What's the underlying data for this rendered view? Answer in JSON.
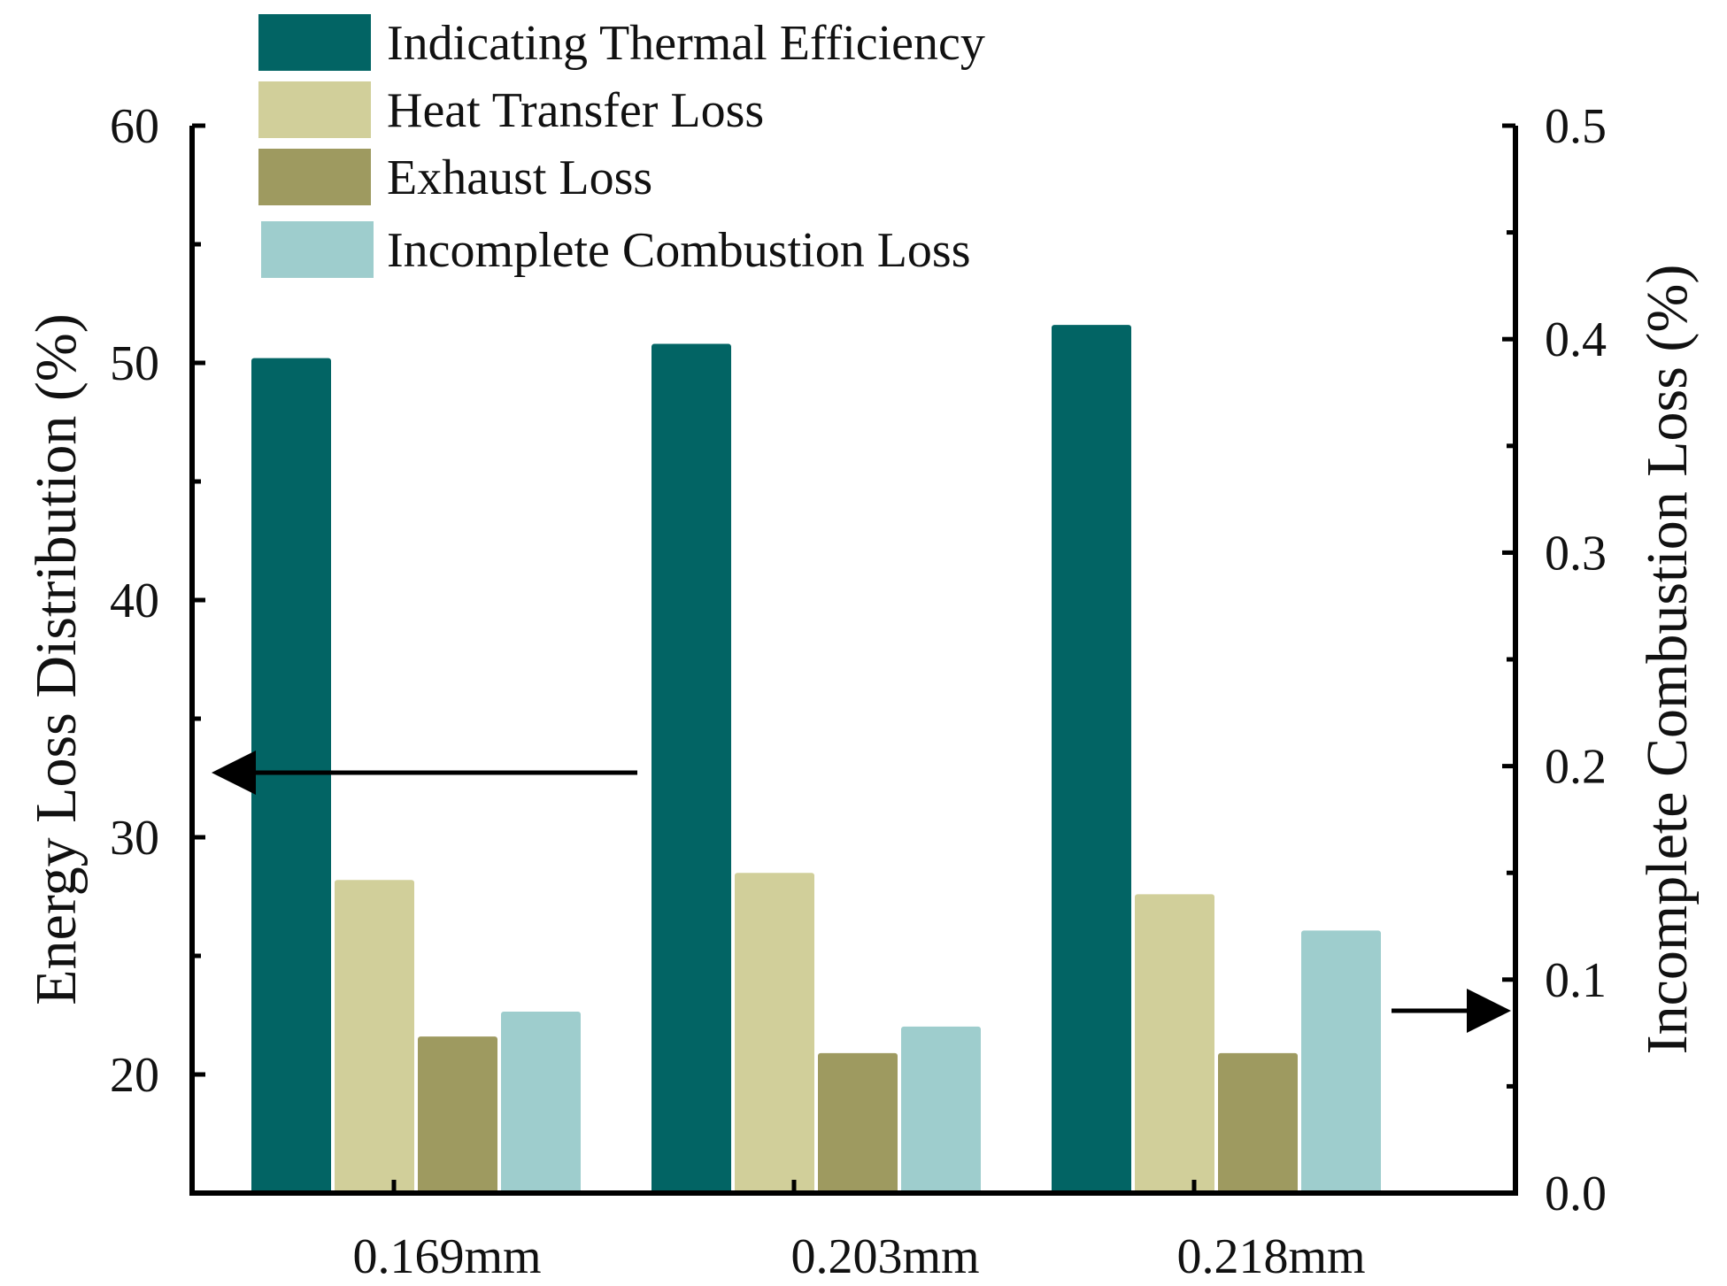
{
  "chart_data": {
    "type": "bar",
    "categories": [
      "0.169mm",
      "0.203mm",
      "0.218mm"
    ],
    "series": [
      {
        "name": "Indicating Thermal Efficiency",
        "axis": "left",
        "color": "#026464",
        "values": [
          50.2,
          50.8,
          51.6
        ]
      },
      {
        "name": "Heat Transfer Loss",
        "axis": "left",
        "color": "#d1cf9a",
        "values": [
          28.2,
          28.5,
          27.6
        ]
      },
      {
        "name": "Exhaust Loss",
        "axis": "left",
        "color": "#9e9a60",
        "values": [
          21.6,
          20.9,
          20.9
        ]
      },
      {
        "name": "Incomplete Combustion Loss",
        "axis": "right",
        "color": "#9ecdcd",
        "values": [
          0.085,
          0.078,
          0.123
        ]
      }
    ],
    "ylabel": "Energy Loss Distribution (%)",
    "ylabel_right": "Incomplete Combustion Loss (%)",
    "ylim": [
      15,
      60
    ],
    "ylim_right": [
      0.0,
      0.5
    ],
    "yticks": [
      "20",
      "30",
      "40",
      "50",
      "60"
    ],
    "yticks_right": [
      "0.0",
      "0.1",
      "0.2",
      "0.3",
      "0.4",
      "0.5"
    ],
    "legend_position": "top-left",
    "grid": false
  }
}
